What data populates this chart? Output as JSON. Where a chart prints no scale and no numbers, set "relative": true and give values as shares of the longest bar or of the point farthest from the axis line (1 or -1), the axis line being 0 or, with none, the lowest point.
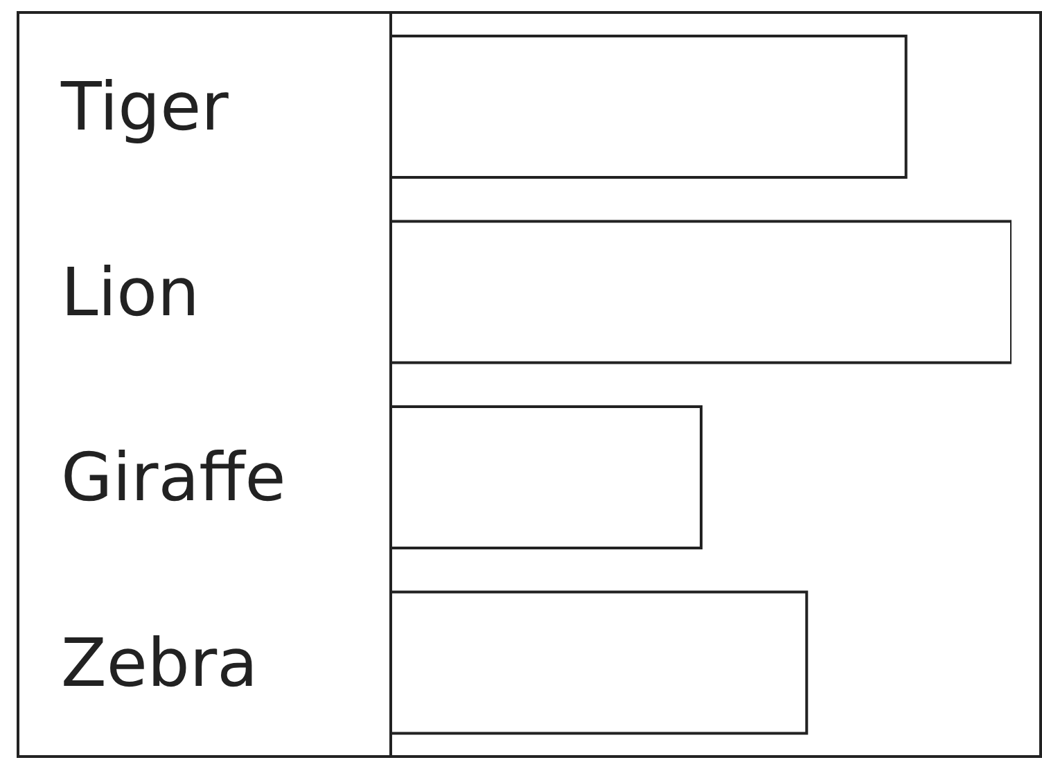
{
  "chart_data": {
    "type": "bar",
    "orientation": "horizontal",
    "relative": true,
    "categories": [
      "Tiger",
      "Lion",
      "Giraffe",
      "Zebra"
    ],
    "values": [
      0.83,
      1,
      0.5,
      0.67
    ],
    "color": "#ffffff"
  }
}
